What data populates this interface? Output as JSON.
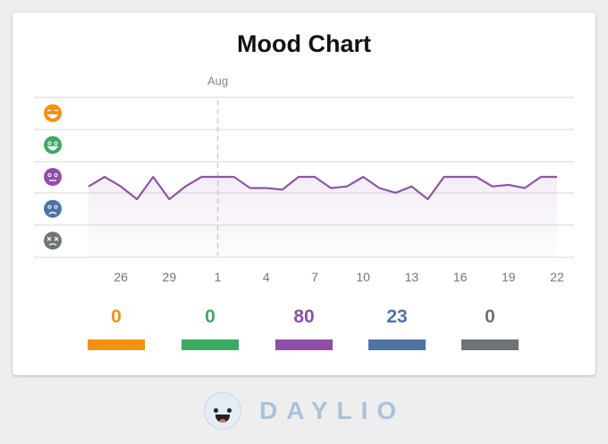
{
  "title": "Mood Chart",
  "chart_data": {
    "type": "line",
    "title": "Mood Chart",
    "month_marker": "Aug",
    "month_marker_day_index": 8,
    "x": [
      24,
      25,
      26,
      27,
      28,
      29,
      30,
      31,
      1,
      2,
      3,
      4,
      5,
      6,
      7,
      8,
      9,
      10,
      11,
      12,
      13,
      14,
      15,
      16,
      17,
      18,
      19,
      20,
      21,
      22
    ],
    "values": [
      2.7,
      3,
      2.7,
      2.3,
      3,
      2.3,
      2.7,
      3,
      3,
      3,
      2.65,
      2.65,
      2.6,
      3,
      3,
      2.65,
      2.7,
      3,
      2.65,
      2.5,
      2.7,
      2.3,
      3,
      3,
      3,
      2.7,
      2.75,
      2.65,
      3,
      3
    ],
    "x_tick_labels": [
      "26",
      "29",
      "1",
      "4",
      "7",
      "10",
      "13",
      "16",
      "19",
      "22"
    ],
    "x_tick_indices": [
      2,
      5,
      8,
      11,
      14,
      17,
      20,
      23,
      26,
      29
    ],
    "ylim": [
      1,
      5
    ],
    "y_levels": [
      {
        "value": 5,
        "mood": "rad",
        "icon": "rad-face-icon",
        "color": "#f6900f"
      },
      {
        "value": 4,
        "mood": "good",
        "icon": "good-face-icon",
        "color": "#3fa964"
      },
      {
        "value": 3,
        "mood": "meh",
        "icon": "meh-face-icon",
        "color": "#8e4fa8"
      },
      {
        "value": 2,
        "mood": "bad",
        "icon": "bad-face-icon",
        "color": "#4f74a3"
      },
      {
        "value": 1,
        "mood": "awful",
        "icon": "awful-face-icon",
        "color": "#6c7476"
      }
    ],
    "grid": true,
    "line_color": "#8e55a6"
  },
  "summary": [
    {
      "label": "0",
      "color": "#f6900f"
    },
    {
      "label": "0",
      "color": "#3fa964"
    },
    {
      "label": "80",
      "color": "#8e4fa8"
    },
    {
      "label": "23",
      "color": "#4f74a3"
    },
    {
      "label": "0",
      "color": "#6c7476"
    }
  ],
  "brand": "DAYLIO"
}
